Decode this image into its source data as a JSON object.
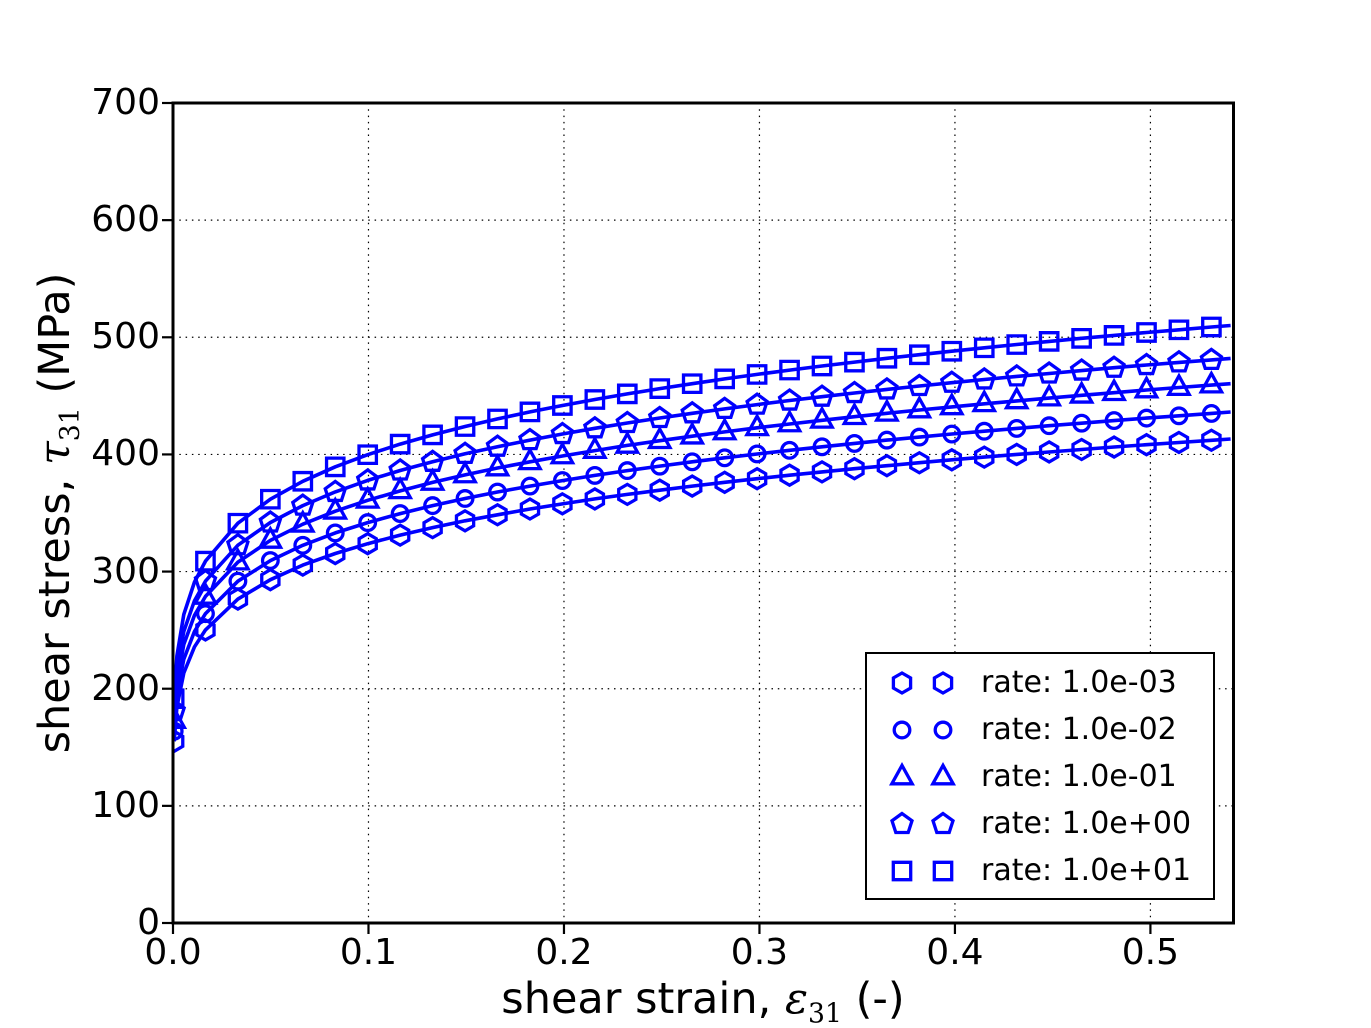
{
  "figure": {
    "background": "#ffffff"
  },
  "axes": {
    "x": {
      "label_prefix": "shear strain, ",
      "symbol": "ε",
      "symbol_sub": "31",
      "label_suffix": " (-)"
    },
    "y": {
      "label_prefix": "shear stress, ",
      "symbol": "τ",
      "symbol_sub": "31",
      "label_suffix": " (MPa)"
    }
  },
  "legend": {
    "items": [
      {
        "marker": "hexagon",
        "label": "rate: 1.0e-03"
      },
      {
        "marker": "circle",
        "label": "rate: 1.0e-02"
      },
      {
        "marker": "triangle",
        "label": "rate: 1.0e-01"
      },
      {
        "marker": "pentagon",
        "label": "rate: 1.0e+00"
      },
      {
        "marker": "square",
        "label": "rate: 1.0e+01"
      }
    ]
  },
  "chart_data": {
    "type": "line",
    "title": "",
    "xlabel": "shear strain, ε31 (-)",
    "ylabel": "shear stress, τ31 (MPa)",
    "xlim": [
      0,
      0.5425
    ],
    "ylim": [
      0,
      700
    ],
    "xticks": [
      0,
      0.1,
      0.2,
      0.3,
      0.4,
      0.5
    ],
    "xtick_labels": [
      "0.0",
      "0.1",
      "0.2",
      "0.3",
      "0.4",
      "0.5"
    ],
    "yticks": [
      0,
      100,
      200,
      300,
      400,
      500,
      600,
      700
    ],
    "ytick_labels": [
      "0",
      "100",
      "200",
      "300",
      "400",
      "500",
      "600",
      "700"
    ],
    "grid": true,
    "legend_position": "lower right",
    "line_color": "#0000ff",
    "x": [
      0.0006,
      0.002,
      0.0055,
      0.011,
      0.0166,
      0.0332,
      0.0498,
      0.0664,
      0.083,
      0.0996,
      0.1162,
      0.1328,
      0.1494,
      0.166,
      0.1826,
      0.1992,
      0.2158,
      0.2324,
      0.249,
      0.2656,
      0.2822,
      0.2988,
      0.3154,
      0.332,
      0.3486,
      0.3652,
      0.3818,
      0.3984,
      0.415,
      0.4316,
      0.4482,
      0.4648,
      0.4814,
      0.498,
      0.5146,
      0.5312,
      0.541
    ],
    "marker_x_exclude": [
      0.002,
      0.0055,
      0.011,
      0.541
    ],
    "series": [
      {
        "name": "rate: 1.0e-03",
        "rate": "1.0e-03",
        "marker": "hexagon",
        "y": [
          155.1,
          184.5,
          213.4,
          235.8,
          250.2,
          276.5,
          293.1,
          305.5,
          315.4,
          323.8,
          331.1,
          337.5,
          343.3,
          348.5,
          353.4,
          357.8,
          362.0,
          365.9,
          369.5,
          373.0,
          376.2,
          379.3,
          382.3,
          385.1,
          387.8,
          390.4,
          392.9,
          395.4,
          397.7,
          400.0,
          402.1,
          404.2,
          406.3,
          408.3,
          410.2,
          412.1,
          413.2
        ]
      },
      {
        "name": "rate: 1.0e-02",
        "rate": "1.0e-02",
        "marker": "circle",
        "y": [
          163.7,
          194.7,
          225.2,
          248.9,
          264.1,
          291.8,
          309.4,
          322.4,
          333.0,
          341.8,
          349.5,
          356.3,
          362.4,
          367.9,
          373.0,
          377.7,
          382.1,
          386.2,
          390.0,
          393.7,
          397.1,
          400.4,
          403.5,
          406.5,
          409.4,
          412.2,
          414.8,
          417.4,
          419.8,
          422.2,
          424.5,
          426.7,
          428.9,
          431.0,
          433.0,
          435.0,
          436.2
        ]
      },
      {
        "name": "rate: 1.0e-01",
        "rate": "1.0e-01",
        "marker": "triangle",
        "y": [
          172.8,
          205.6,
          237.8,
          262.7,
          278.8,
          308.1,
          326.6,
          340.4,
          351.5,
          360.8,
          368.9,
          376.1,
          382.5,
          388.4,
          393.7,
          398.7,
          403.3,
          407.7,
          411.7,
          415.6,
          419.2,
          422.7,
          426.0,
          429.1,
          432.2,
          435.1,
          437.9,
          440.6,
          443.2,
          445.7,
          448.1,
          450.5,
          452.7,
          455.0,
          457.1,
          459.2,
          460.4
        ]
      },
      {
        "name": "rate: 1.0e+00",
        "rate": "1.0e+00",
        "marker": "pentagon",
        "y": [
          180.9,
          215.2,
          248.9,
          275.1,
          291.9,
          322.5,
          341.9,
          356.3,
          368.0,
          377.8,
          386.3,
          393.7,
          400.5,
          406.6,
          412.2,
          417.4,
          422.3,
          426.8,
          431.1,
          435.1,
          438.9,
          442.5,
          446.0,
          449.3,
          452.4,
          455.5,
          458.4,
          461.2,
          464.0,
          466.6,
          469.1,
          471.6,
          474.0,
          476.3,
          478.6,
          480.7,
          482.0
        ]
      },
      {
        "name": "rate: 1.0e+01",
        "rate": "1.0e+01",
        "marker": "square",
        "y": [
          191.5,
          227.8,
          263.4,
          291.1,
          308.9,
          341.3,
          361.8,
          377.1,
          389.4,
          399.8,
          408.8,
          416.7,
          423.8,
          430.3,
          436.3,
          441.8,
          446.9,
          451.7,
          456.2,
          460.4,
          464.5,
          468.3,
          472.0,
          475.5,
          478.8,
          482.1,
          485.1,
          488.1,
          491.0,
          493.8,
          496.5,
          499.1,
          501.6,
          504.1,
          506.4,
          508.8,
          510.1
        ]
      }
    ]
  }
}
